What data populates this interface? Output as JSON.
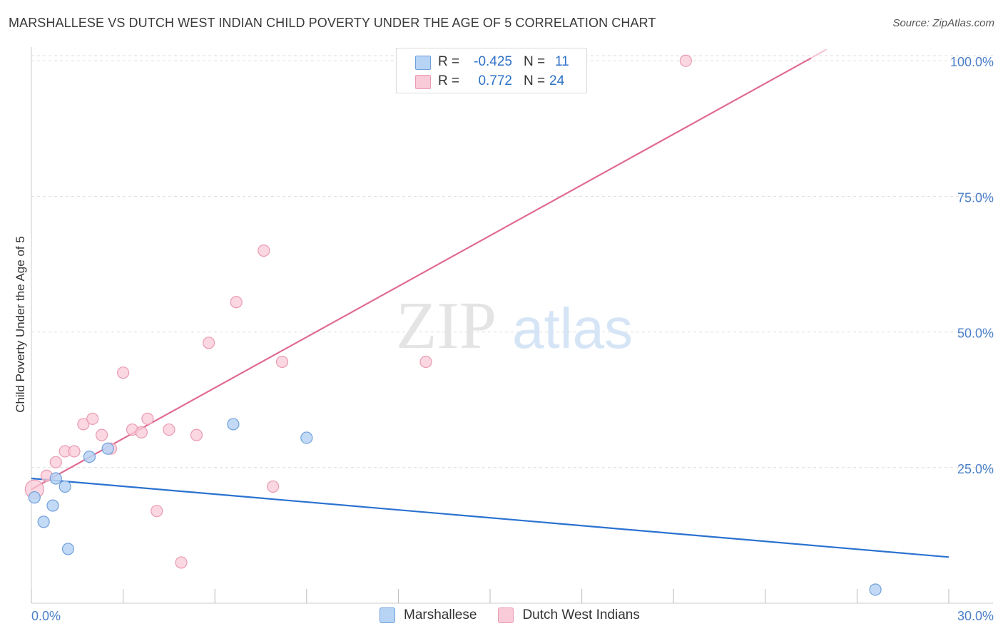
{
  "title": "MARSHALLESE VS DUTCH WEST INDIAN CHILD POVERTY UNDER THE AGE OF 5 CORRELATION CHART",
  "source": "Source: ZipAtlas.com",
  "watermark": {
    "zip": "ZIP",
    "atlas": "atlas"
  },
  "legend_top": {
    "rows": [
      {
        "r_label": "R =",
        "r_value": "-0.425",
        "n_label": "N =",
        "n_value": "11"
      },
      {
        "r_label": "R =",
        "r_value": "0.772",
        "n_label": "N =",
        "n_value": "24"
      }
    ]
  },
  "legend_bottom": {
    "items": [
      {
        "label": "Marshallese"
      },
      {
        "label": "Dutch West Indians"
      }
    ]
  },
  "colors": {
    "marshallese_fill": "#b8d4f5",
    "marshallese_stroke": "#6f9fdb",
    "marshallese_line": "#2a72d0",
    "dutch_fill": "#f9cad7",
    "dutch_stroke": "#e99ab1",
    "dutch_line": "#e06b93",
    "tick_text": "#4a7fc8",
    "grid": "#dddddd"
  },
  "chart_data": {
    "type": "scatter",
    "title": "MARSHALLESE VS DUTCH WEST INDIAN CHILD POVERTY UNDER THE AGE OF 5 CORRELATION CHART",
    "xlabel": "",
    "ylabel": "Child Poverty Under the Age of 5",
    "xlim": [
      0,
      30
    ],
    "ylim": [
      0,
      102
    ],
    "x_tick_labels": [
      "0.0%",
      "30.0%"
    ],
    "y_ticks": [
      25,
      50,
      75,
      100
    ],
    "y_tick_labels": [
      "25.0%",
      "50.0%",
      "75.0%",
      "100.0%"
    ],
    "grid": "horizontal dashed",
    "legend_placement": "top-center and bottom",
    "series": [
      {
        "name": "Marshallese",
        "r": -0.425,
        "n": 11,
        "points": [
          {
            "x": 0.1,
            "y": 19.5
          },
          {
            "x": 0.4,
            "y": 15.0
          },
          {
            "x": 0.7,
            "y": 18.0
          },
          {
            "x": 0.8,
            "y": 23.0
          },
          {
            "x": 1.1,
            "y": 21.5
          },
          {
            "x": 1.2,
            "y": 10.0
          },
          {
            "x": 1.9,
            "y": 27.0
          },
          {
            "x": 2.5,
            "y": 28.5
          },
          {
            "x": 6.6,
            "y": 33.0
          },
          {
            "x": 9.0,
            "y": 30.5
          },
          {
            "x": 27.6,
            "y": 2.5
          }
        ],
        "trend": {
          "x0": 0,
          "y0": 23.0,
          "x1": 30,
          "y1": 8.5
        }
      },
      {
        "name": "Dutch West Indians",
        "r": 0.772,
        "n": 24,
        "points": [
          {
            "x": 0.1,
            "y": 21.0
          },
          {
            "x": 0.5,
            "y": 23.5
          },
          {
            "x": 0.8,
            "y": 26.0
          },
          {
            "x": 1.1,
            "y": 28.0
          },
          {
            "x": 1.4,
            "y": 28.0
          },
          {
            "x": 1.7,
            "y": 33.0
          },
          {
            "x": 2.0,
            "y": 34.0
          },
          {
            "x": 2.3,
            "y": 31.0
          },
          {
            "x": 2.6,
            "y": 28.5
          },
          {
            "x": 3.0,
            "y": 42.5
          },
          {
            "x": 3.3,
            "y": 32.0
          },
          {
            "x": 3.6,
            "y": 31.5
          },
          {
            "x": 3.8,
            "y": 34.0
          },
          {
            "x": 4.1,
            "y": 17.0
          },
          {
            "x": 4.5,
            "y": 32.0
          },
          {
            "x": 4.9,
            "y": 7.5
          },
          {
            "x": 5.4,
            "y": 31.0
          },
          {
            "x": 5.8,
            "y": 48.0
          },
          {
            "x": 6.7,
            "y": 55.5
          },
          {
            "x": 7.6,
            "y": 65.0
          },
          {
            "x": 7.9,
            "y": 21.5
          },
          {
            "x": 8.2,
            "y": 44.5
          },
          {
            "x": 12.9,
            "y": 44.5
          },
          {
            "x": 21.4,
            "y": 100.0
          }
        ],
        "trend": {
          "x0": 0,
          "y0": 21.0,
          "x1": 25.5,
          "y1": 100.5
        }
      }
    ]
  }
}
